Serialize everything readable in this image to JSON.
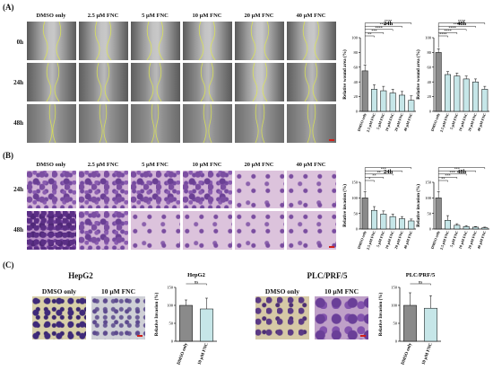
{
  "panels": {
    "a": {
      "letter": "(A)",
      "row_labels": [
        "0h",
        "24h",
        "48h"
      ],
      "col_labels": [
        "DMSO only",
        "2.5 μM FNC",
        "5 μM FNC",
        "10 μM FNC",
        "20 μM FNC",
        "40 μM FNC"
      ]
    },
    "b": {
      "letter": "(B)",
      "row_labels": [
        "24h",
        "48h"
      ],
      "col_labels": [
        "DMSO only",
        "2.5 μM FNC",
        "5 μM FNC",
        "10 μM FNC",
        "20 μM FNC",
        "40 μM FNC"
      ]
    },
    "c": {
      "letter": "(C)",
      "hep_title": "HepG2",
      "plc_title": "PLC/PRF/5",
      "labels": [
        "DMSO only",
        "10 μM FNC"
      ]
    }
  },
  "colors": {
    "control_bar": "#8a8a8a",
    "treat_bar": "#c6e6e8",
    "scale_bar": "#d0201a"
  },
  "chart_data": [
    {
      "type": "bar",
      "title": "24h",
      "ylabel": "Relative wound area (%)",
      "categories": [
        "DMSO only",
        "2.5 μM FNC",
        "5 μM FNC",
        "10 μM FNC",
        "20 μM FNC",
        "40 μM FNC"
      ],
      "values": [
        55,
        30,
        28,
        25,
        22,
        15
      ],
      "errors": [
        8,
        6,
        6,
        5,
        5,
        6
      ],
      "ylim": [
        0,
        100
      ],
      "yticks": [
        "0",
        "20",
        "40",
        "60",
        "80",
        "100"
      ],
      "significance": [
        "**",
        "***",
        "****",
        "****",
        "****"
      ]
    },
    {
      "type": "bar",
      "title": "48h",
      "ylabel": "Relative wound area (%)",
      "categories": [
        "DMSO only",
        "2.5 μM FNC",
        "5 μM FNC",
        "10 μM FNC",
        "20 μM FNC",
        "40 μM FNC"
      ],
      "values": [
        80,
        50,
        48,
        44,
        40,
        30
      ],
      "errors": [
        5,
        4,
        4,
        4,
        4,
        4
      ],
      "ylim": [
        0,
        100
      ],
      "yticks": [
        "0",
        "20",
        "40",
        "60",
        "80",
        "100"
      ],
      "significance": [
        "****",
        "****",
        "****",
        "****",
        "****"
      ]
    },
    {
      "type": "bar",
      "title": "24h",
      "ylabel": "Relative invasion (%)",
      "categories": [
        "DMSO only",
        "2.5 μM FNC",
        "5 μM FNC",
        "10 μM FNC",
        "20 μM FNC",
        "40 μM FNC"
      ],
      "values": [
        100,
        60,
        48,
        40,
        33,
        26
      ],
      "errors": [
        20,
        12,
        10,
        8,
        7,
        6
      ],
      "ylim": [
        0,
        150
      ],
      "yticks": [
        "0",
        "50",
        "100",
        "150"
      ],
      "significance": [
        "*",
        "**",
        "**",
        "***",
        "***"
      ]
    },
    {
      "type": "bar",
      "title": "48h",
      "ylabel": "Relative invasion (%)",
      "categories": [
        "DMSO only",
        "2.5 μM FNC",
        "5 μM FNC",
        "10 μM FNC",
        "20 μM FNC",
        "40 μM FNC"
      ],
      "values": [
        100,
        28,
        12,
        8,
        6,
        4
      ],
      "errors": [
        20,
        15,
        5,
        3,
        2,
        2
      ],
      "ylim": [
        0,
        150
      ],
      "yticks": [
        "0",
        "50",
        "100",
        "150"
      ],
      "significance": [
        "**",
        "***",
        "***",
        "***",
        "***"
      ]
    },
    {
      "type": "bar",
      "title": "HepG2",
      "ylabel": "Relative Invasion (%)",
      "categories": [
        "DMSO only",
        "10 μM FNC"
      ],
      "values": [
        100,
        90
      ],
      "errors": [
        15,
        30
      ],
      "ylim": [
        0,
        150
      ],
      "yticks": [
        "0",
        "50",
        "100",
        "150"
      ],
      "significance": [
        "ns"
      ]
    },
    {
      "type": "bar",
      "title": "PLC/PRF/5",
      "ylabel": "Relative Invasion (%)",
      "categories": [
        "DMSO only",
        "10 μM FNC"
      ],
      "values": [
        100,
        92
      ],
      "errors": [
        35,
        35
      ],
      "ylim": [
        0,
        150
      ],
      "yticks": [
        "0",
        "50",
        "100",
        "150"
      ],
      "significance": [
        "ns"
      ]
    }
  ]
}
